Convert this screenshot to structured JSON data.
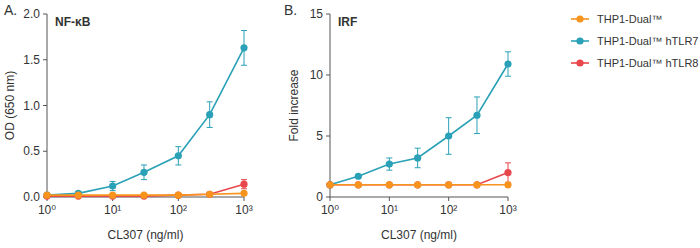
{
  "chart_data": [
    {
      "type": "line",
      "title": "NF-κB",
      "annotations": [
        "A."
      ],
      "x_label": "CL307 (ng/ml)",
      "y_label": "OD (650 nm)",
      "log": "x",
      "legend": "right",
      "grid": false,
      "marker": "circle",
      "x": [
        1,
        3,
        10,
        30,
        100,
        300,
        1000
      ],
      "xlim": [
        1,
        1000
      ],
      "xticks": [
        {
          "value": 1,
          "label": "10⁰"
        },
        {
          "value": 10,
          "label": "10¹"
        },
        {
          "value": 100,
          "label": "10²"
        },
        {
          "value": 1000,
          "label": "10³"
        }
      ],
      "ylim": [
        0,
        2
      ],
      "yticks": [
        {
          "value": 0,
          "label": "0.0"
        },
        0.5,
        {
          "value": 1,
          "label": "1.0"
        },
        1.5,
        {
          "value": 2,
          "label": "2.0"
        }
      ],
      "series": [
        {
          "name": "THP1-Dual™",
          "color": "#f7941d",
          "values": [
            0.02,
            0.02,
            0.02,
            0.02,
            0.02,
            0.03,
            0.04
          ],
          "errors": [
            0.01,
            0.01,
            0.01,
            0.01,
            0.01,
            0.01,
            0.01
          ]
        },
        {
          "name": "THP1-Dual™ hTLR7",
          "color": "#2aa1b6",
          "values": [
            0.02,
            0.04,
            0.12,
            0.27,
            0.45,
            0.9,
            1.63
          ],
          "errors": [
            0.01,
            0.02,
            0.05,
            0.08,
            0.1,
            0.14,
            0.19
          ]
        },
        {
          "name": "THP1-Dual™ hTLR8",
          "color": "#e8474c",
          "values": [
            0.01,
            0.01,
            0.01,
            0.01,
            0.02,
            0.03,
            0.14
          ],
          "errors": [
            0,
            0,
            0,
            0,
            0.01,
            0.01,
            0.05
          ]
        }
      ]
    },
    {
      "type": "line",
      "title": "IRF",
      "annotations": [
        "B."
      ],
      "x_label": "CL307 (ng/ml)",
      "y_label": "Fold increase",
      "log": "x",
      "grid": false,
      "marker": "circle",
      "x": [
        1,
        3,
        10,
        30,
        100,
        300,
        1000
      ],
      "xlim": [
        1,
        1000
      ],
      "xticks": [
        {
          "value": 1,
          "label": "10⁰"
        },
        {
          "value": 10,
          "label": "10¹"
        },
        {
          "value": 100,
          "label": "10²"
        },
        {
          "value": 1000,
          "label": "10³"
        }
      ],
      "ylim": [
        0,
        15
      ],
      "yticks": [
        0,
        5,
        10,
        15
      ],
      "series": [
        {
          "name": "THP1-Dual™",
          "color": "#f7941d",
          "values": [
            1,
            1,
            1,
            1,
            1,
            1,
            1
          ],
          "errors": [
            0,
            0,
            0,
            0,
            0,
            0,
            0
          ]
        },
        {
          "name": "THP1-Dual™ hTLR7",
          "color": "#2aa1b6",
          "values": [
            1,
            1.7,
            2.7,
            3.2,
            5,
            6.7,
            10.9
          ],
          "errors": [
            0,
            0.1,
            0.5,
            0.8,
            1.5,
            1.5,
            1
          ]
        },
        {
          "name": "THP1-Dual™ hTLR8",
          "color": "#e8474c",
          "values": [
            1,
            1,
            1,
            1,
            1,
            1,
            2
          ],
          "errors": [
            0,
            0,
            0,
            0,
            0,
            0,
            0.8
          ]
        }
      ]
    }
  ]
}
